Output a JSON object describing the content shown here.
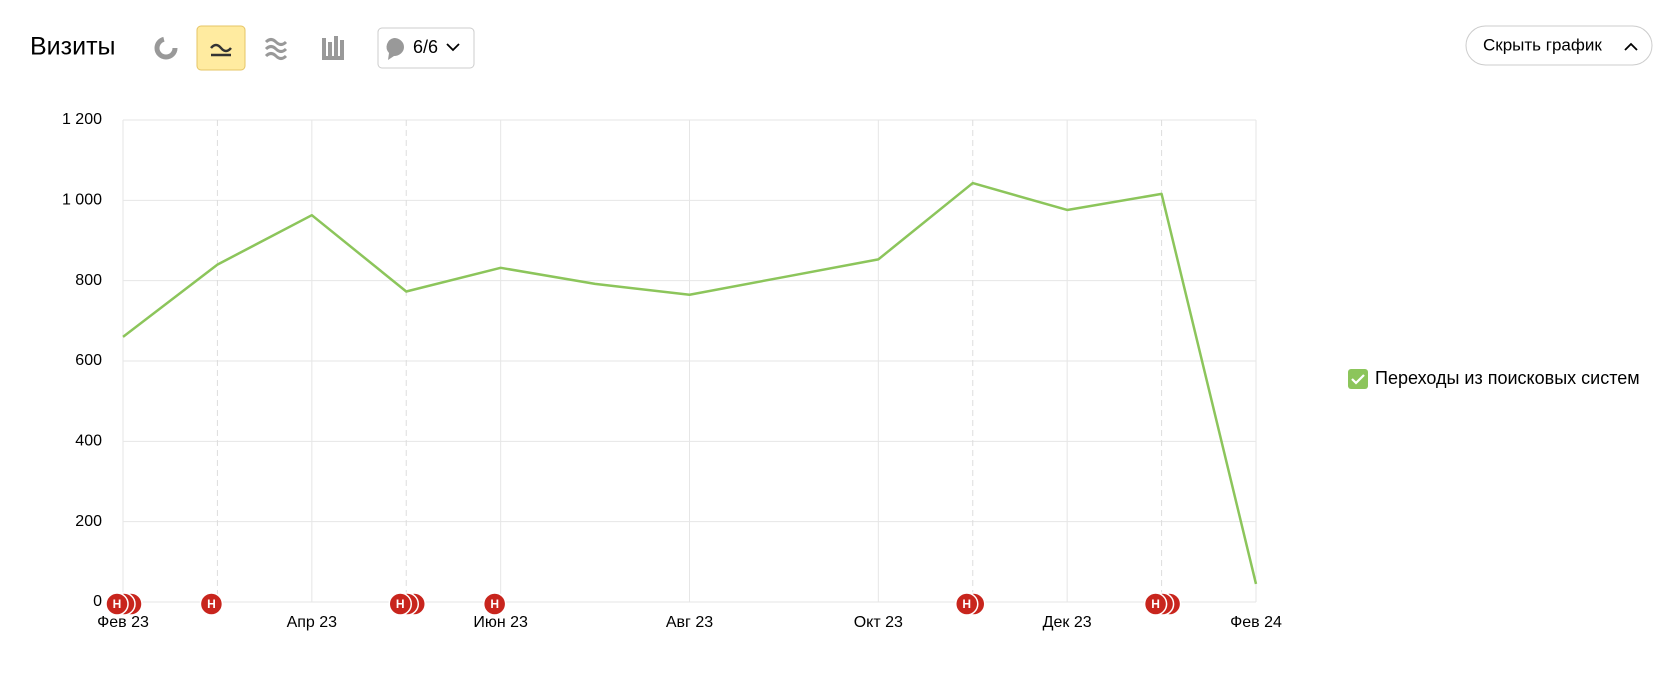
{
  "header": {
    "title": "Визиты",
    "comments": "6/6",
    "hide_button": "Скрыть график"
  },
  "chart_data": {
    "type": "line",
    "categories": [
      "Фев 23",
      null,
      "Апр 23",
      null,
      "Июн 23",
      null,
      "Авг 23",
      null,
      "Окт 23",
      null,
      "Дек 23",
      null,
      "Фев 24"
    ],
    "series": [
      {
        "name": "Переходы из поисковых систем",
        "color": "#8cc55b",
        "values": [
          660,
          840,
          963,
          773,
          832,
          792,
          765,
          809,
          853,
          1043,
          976,
          1016,
          45
        ]
      }
    ],
    "ylim": [
      0,
      1200
    ],
    "yticks": [
      0,
      200,
      400,
      600,
      800,
      {
        "value": 1000,
        "label": "1 000"
      },
      {
        "value": 1200,
        "label": "1 200"
      }
    ],
    "grid": true,
    "legend": "right",
    "annotations": [
      {
        "at": 0,
        "label": "Н",
        "count": 3
      },
      {
        "at": 1,
        "label": "Н",
        "count": 1
      },
      {
        "at": 3,
        "label": "Н",
        "count": 3
      },
      {
        "at": 4,
        "label": "Н",
        "count": 1
      },
      {
        "at": 9,
        "label": "Н",
        "count": 2
      },
      {
        "at": 11,
        "label": "Н",
        "count": 3
      }
    ]
  }
}
